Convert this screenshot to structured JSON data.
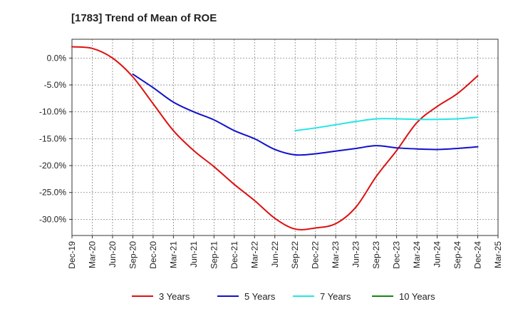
{
  "chart_data": {
    "type": "line",
    "title": "[1783]  Trend of Mean of ROE",
    "xlabel": "",
    "ylabel": "",
    "x_ticks": [
      "Dec-19",
      "Mar-20",
      "Jun-20",
      "Sep-20",
      "Dec-20",
      "Mar-21",
      "Jun-21",
      "Sep-21",
      "Dec-21",
      "Mar-22",
      "Jun-22",
      "Sep-22",
      "Dec-22",
      "Mar-23",
      "Jun-23",
      "Sep-23",
      "Dec-23",
      "Mar-24",
      "Jun-24",
      "Sep-24",
      "Dec-24",
      "Mar-25"
    ],
    "y_ticks": [
      "0.0%",
      "-5.0%",
      "-10.0%",
      "-15.0%",
      "-20.0%",
      "-25.0%",
      "-30.0%"
    ],
    "y_tick_values": [
      0,
      -5,
      -10,
      -15,
      -20,
      -25,
      -30
    ],
    "ylim": [
      -33,
      3.5
    ],
    "grid": true,
    "legend_position": "bottom",
    "series": [
      {
        "name": "3 Years",
        "color": "#dd1111",
        "x": [
          "Dec-19",
          "Mar-20",
          "Jun-20",
          "Sep-20",
          "Dec-20",
          "Mar-21",
          "Jun-21",
          "Sep-21",
          "Dec-21",
          "Mar-22",
          "Jun-22",
          "Sep-22",
          "Dec-22",
          "Mar-23",
          "Jun-23",
          "Sep-23",
          "Dec-23",
          "Mar-24",
          "Jun-24",
          "Sep-24",
          "Dec-24"
        ],
        "values": [
          2.1,
          1.8,
          0.0,
          -3.5,
          -8.5,
          -13.5,
          -17.2,
          -20.2,
          -23.5,
          -26.5,
          -29.8,
          -31.8,
          -31.6,
          -30.8,
          -27.7,
          -22.0,
          -17.2,
          -12.0,
          -9.0,
          -6.6,
          -3.3
        ]
      },
      {
        "name": "5 Years",
        "color": "#1111cc",
        "x": [
          "Sep-20",
          "Dec-20",
          "Mar-21",
          "Jun-21",
          "Sep-21",
          "Dec-21",
          "Mar-22",
          "Jun-22",
          "Sep-22",
          "Dec-22",
          "Mar-23",
          "Jun-23",
          "Sep-23",
          "Dec-23",
          "Mar-24",
          "Jun-24",
          "Sep-24",
          "Dec-24"
        ],
        "values": [
          -3.0,
          -5.5,
          -8.2,
          -10.0,
          -11.5,
          -13.5,
          -15.0,
          -17.0,
          -18.0,
          -17.8,
          -17.3,
          -16.8,
          -16.3,
          -16.7,
          -16.9,
          -17.0,
          -16.8,
          -16.5
        ]
      },
      {
        "name": "7 Years",
        "color": "#22e6e6",
        "x": [
          "Sep-22",
          "Dec-22",
          "Mar-23",
          "Jun-23",
          "Sep-23",
          "Dec-23",
          "Mar-24",
          "Jun-24",
          "Sep-24",
          "Dec-24"
        ],
        "values": [
          -13.5,
          -13.0,
          -12.4,
          -11.8,
          -11.3,
          -11.3,
          -11.4,
          -11.4,
          -11.3,
          -11.0
        ]
      },
      {
        "name": "10 Years",
        "color": "#118811",
        "x": [],
        "values": []
      }
    ]
  }
}
